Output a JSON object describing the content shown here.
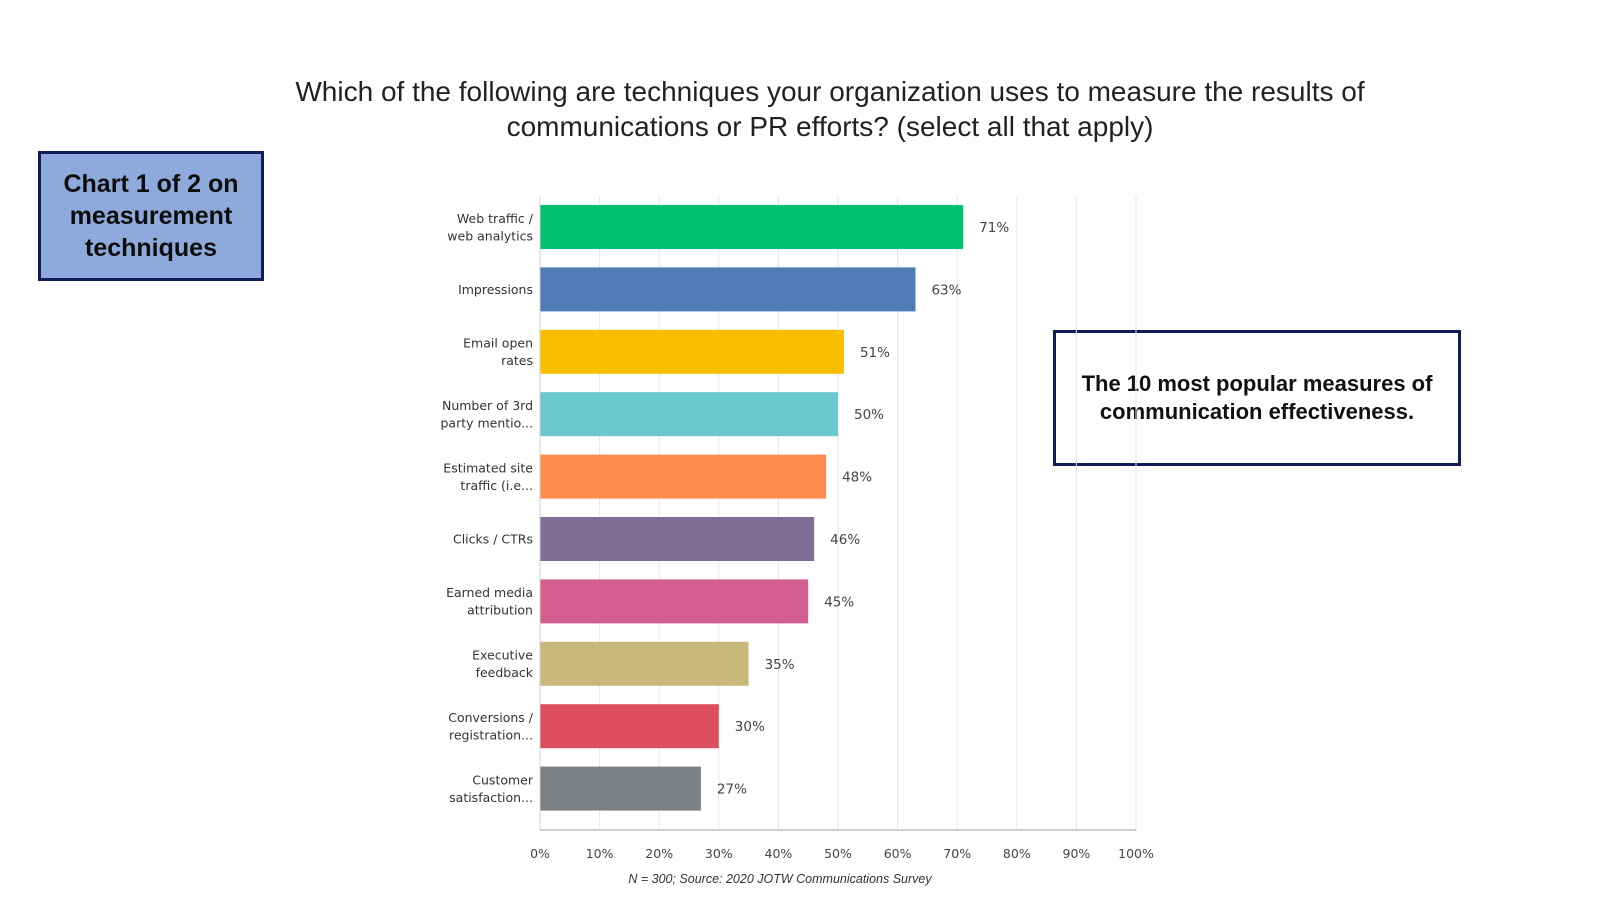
{
  "title": "Which of the following are techniques your organization uses to measure the results of communications or PR efforts? (select all that apply)",
  "callout_left": "Chart 1 of 2 on measurement techniques",
  "callout_right": "The 10 most popular measures of communication effectiveness.",
  "source": "N = 300; Source: 2020 JOTW Communications Survey",
  "chart_data": {
    "type": "bar",
    "orientation": "horizontal",
    "categories": [
      [
        "Web traffic /",
        "web analytics"
      ],
      [
        "Impressions"
      ],
      [
        "Email open",
        "rates"
      ],
      [
        "Number of 3rd",
        "party mentio..."
      ],
      [
        "Estimated site",
        "traffic (i.e..."
      ],
      [
        "Clicks / CTRs"
      ],
      [
        "Earned media",
        "attribution"
      ],
      [
        "Executive",
        "feedback"
      ],
      [
        "Conversions /",
        "registration..."
      ],
      [
        "Customer",
        "satisfaction..."
      ]
    ],
    "values": [
      71,
      63,
      51,
      50,
      48,
      46,
      45,
      35,
      30,
      27
    ],
    "value_labels": [
      "71%",
      "63%",
      "51%",
      "50%",
      "48%",
      "46%",
      "45%",
      "35%",
      "30%",
      "27%"
    ],
    "colors": [
      "#00bf6f",
      "#507cb6",
      "#f9be00",
      "#6bc8cd",
      "#ff8b4f",
      "#7f6d96",
      "#d25f90",
      "#c8b97b",
      "#dd4e5f",
      "#7d8186"
    ],
    "xlim": [
      0,
      100
    ],
    "xticks": [
      0,
      10,
      20,
      30,
      40,
      50,
      60,
      70,
      80,
      90,
      100
    ],
    "xtick_labels": [
      "0%",
      "10%",
      "20%",
      "30%",
      "40%",
      "50%",
      "60%",
      "70%",
      "80%",
      "90%",
      "100%"
    ],
    "grid": true
  }
}
